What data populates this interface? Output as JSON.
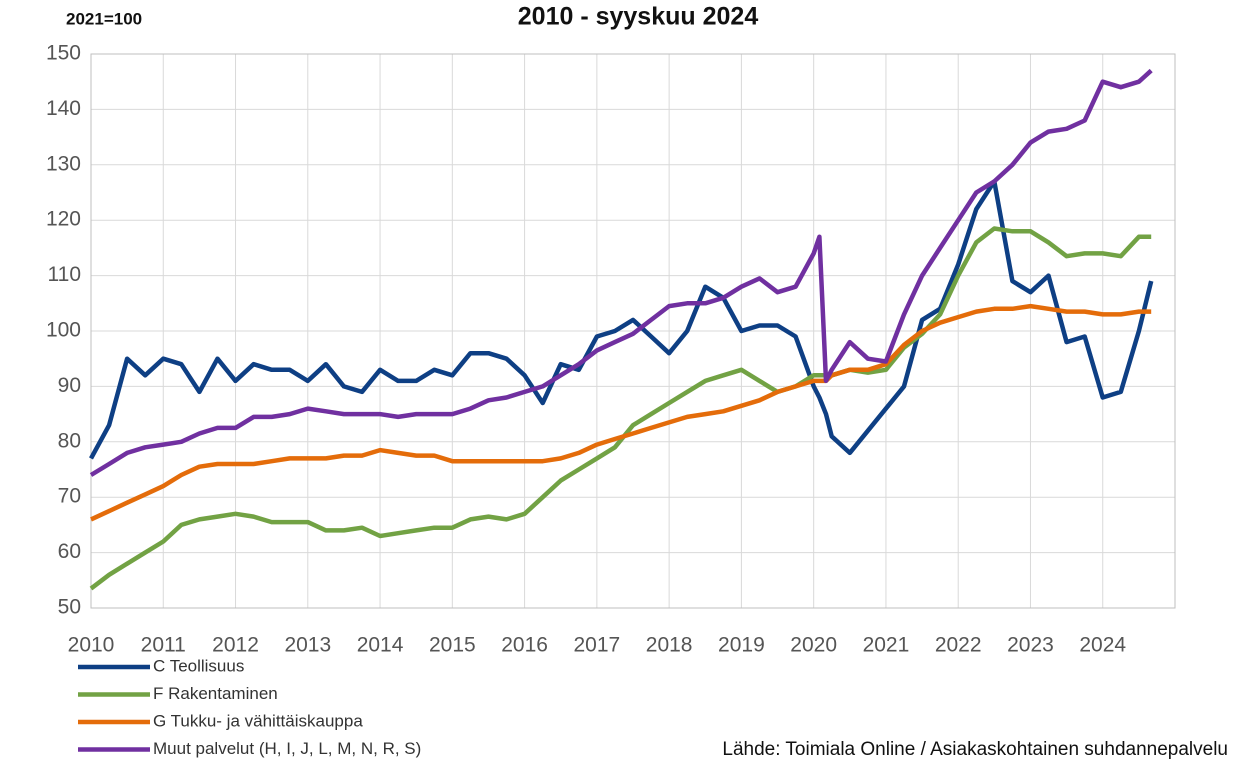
{
  "chart_data": {
    "type": "line",
    "title": "2010 - syyskuu 2024",
    "subtitle": "2021=100",
    "source": "Lähde: Toimiala Online / Asiakaskohtainen suhdannepalvelu",
    "x": [
      2010,
      2010.25,
      2010.5,
      2010.75,
      2011,
      2011.25,
      2011.5,
      2011.75,
      2012,
      2012.25,
      2012.5,
      2012.75,
      2013,
      2013.25,
      2013.5,
      2013.75,
      2014,
      2014.25,
      2014.5,
      2014.75,
      2015,
      2015.25,
      2015.5,
      2015.75,
      2016,
      2016.25,
      2016.5,
      2016.75,
      2017,
      2017.25,
      2017.5,
      2017.75,
      2018,
      2018.25,
      2018.5,
      2018.75,
      2019,
      2019.25,
      2019.5,
      2019.75,
      2020,
      2020.08,
      2020.17,
      2020.25,
      2020.5,
      2020.75,
      2021,
      2021.25,
      2021.5,
      2021.75,
      2022,
      2022.25,
      2022.5,
      2022.75,
      2023,
      2023.25,
      2023.5,
      2023.75,
      2024,
      2024.25,
      2024.5,
      2024.67
    ],
    "series": [
      {
        "name": "C Teollisuus",
        "color": "#0e3f84",
        "values": [
          77,
          83,
          95,
          92,
          95,
          94,
          89,
          95,
          91,
          94,
          93,
          93,
          91,
          94,
          90,
          89,
          93,
          91,
          91,
          93,
          92,
          96,
          96,
          95,
          92,
          87,
          94,
          93,
          99,
          100,
          102,
          99,
          96,
          100,
          108,
          106,
          100,
          101,
          101,
          99,
          90,
          88,
          85,
          81,
          78,
          82,
          86,
          90,
          102,
          104,
          112,
          122,
          127,
          109,
          107,
          110,
          98,
          99,
          88,
          89,
          100,
          109
        ]
      },
      {
        "name": "F Rakentaminen",
        "color": "#72a244",
        "values": [
          53.5,
          56,
          58,
          60,
          62,
          65,
          66,
          66.5,
          67,
          66.5,
          65.5,
          65.5,
          65.5,
          64,
          64,
          64.5,
          63,
          63.5,
          64,
          64.5,
          64.5,
          66,
          66.5,
          66,
          67,
          70,
          73,
          75,
          77,
          79,
          83,
          85,
          87,
          89,
          91,
          92,
          93,
          91,
          89,
          90,
          92,
          92,
          92,
          92,
          93,
          92.5,
          93,
          97,
          99.5,
          103,
          110,
          116,
          118.5,
          118,
          118,
          116,
          113.5,
          114,
          114,
          113.5,
          117,
          117
        ]
      },
      {
        "name": "G Tukku- ja vähittäiskauppa",
        "color": "#e46c0a",
        "values": [
          66,
          67.5,
          69,
          70.5,
          72,
          74,
          75.5,
          76,
          76,
          76,
          76.5,
          77,
          77,
          77,
          77.5,
          77.5,
          78.5,
          78,
          77.5,
          77.5,
          76.5,
          76.5,
          76.5,
          76.5,
          76.5,
          76.5,
          77,
          78,
          79.5,
          80.5,
          81.5,
          82.5,
          83.5,
          84.5,
          85,
          85.5,
          86.5,
          87.5,
          89,
          90,
          91,
          91,
          91,
          92,
          93,
          93,
          94,
          97.5,
          100,
          101.5,
          102.5,
          103.5,
          104,
          104,
          104.5,
          104,
          103.5,
          103.5,
          103,
          103,
          103.5,
          103.5
        ]
      },
      {
        "name": "Muut palvelut (H, I, J, L, M, N, R, S)",
        "color": "#7030a0",
        "values": [
          74,
          76,
          78,
          79,
          79.5,
          80,
          81.5,
          82.5,
          82.5,
          84.5,
          84.5,
          85,
          86,
          85.5,
          85,
          85,
          85,
          84.5,
          85,
          85,
          85,
          86,
          87.5,
          88,
          89,
          90,
          92,
          94,
          96.5,
          98,
          99.5,
          102,
          104.5,
          105,
          105,
          106,
          108,
          109.5,
          107,
          108,
          114,
          117,
          91,
          93,
          98,
          95,
          94.5,
          103,
          110,
          115,
          120,
          125,
          127,
          130,
          134,
          136,
          136.5,
          138,
          145,
          144,
          145,
          147
        ]
      }
    ],
    "xlim": [
      2010,
      2025
    ],
    "xticks": [
      2010,
      2011,
      2012,
      2013,
      2014,
      2015,
      2016,
      2017,
      2018,
      2019,
      2020,
      2021,
      2022,
      2023,
      2024
    ],
    "ylim": [
      50,
      150
    ],
    "yticks": [
      50,
      60,
      70,
      80,
      90,
      100,
      110,
      120,
      130,
      140,
      150
    ],
    "grid": true
  }
}
